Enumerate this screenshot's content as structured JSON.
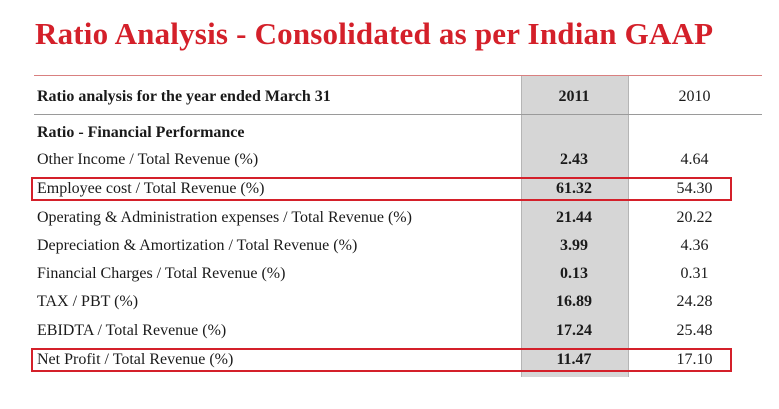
{
  "title": "Ratio Analysis - Consolidated as per Indian GAAP",
  "table": {
    "header": {
      "label": "Ratio analysis for the year ended March 31",
      "col_2011": "2011",
      "col_2010": "2010"
    },
    "section": "Ratio - Financial Performance",
    "rows": [
      {
        "label": "Other Income / Total Revenue (%)",
        "v2011": "2.43",
        "v2010": "4.64"
      },
      {
        "label": "Employee cost / Total Revenue (%)",
        "v2011": "61.32",
        "v2010": "54.30"
      },
      {
        "label": "Operating & Administration expenses / Total Revenue (%)",
        "v2011": "21.44",
        "v2010": "20.22"
      },
      {
        "label": "Depreciation & Amortization / Total Revenue (%)",
        "v2011": "3.99",
        "v2010": "4.36"
      },
      {
        "label": "Financial Charges / Total Revenue (%)",
        "v2011": "0.13",
        "v2010": "0.31"
      },
      {
        "label": "TAX / PBT (%)",
        "v2011": "16.89",
        "v2010": "24.28"
      },
      {
        "label": "EBIDTA / Total Revenue (%)",
        "v2011": "17.24",
        "v2010": "25.48"
      },
      {
        "label": "Net Profit / Total Revenue (%)",
        "v2011": "11.47",
        "v2010": "17.10"
      }
    ]
  },
  "colors": {
    "title": "#d4202a",
    "highlight": "#d4202a",
    "shade": "#d6d6d6"
  }
}
